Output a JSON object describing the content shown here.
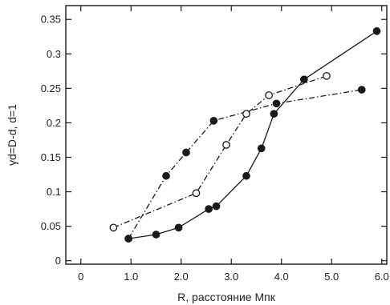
{
  "chart_data": {
    "type": "scatter",
    "title": "",
    "xlabel": "R, расстояние Мпк",
    "ylabel": "γd=D-d, d=1",
    "xlim": [
      -0.3,
      6.1
    ],
    "ylim": [
      -0.005,
      0.37
    ],
    "grid": false,
    "legend": "none",
    "x_ticks": [
      {
        "value": 0,
        "label": "0"
      },
      {
        "value": 1,
        "label": "1.0"
      },
      {
        "value": 2,
        "label": "2.0"
      },
      {
        "value": 3,
        "label": "3.0"
      },
      {
        "value": 4,
        "label": "4.0"
      },
      {
        "value": 5,
        "label": "5.0"
      },
      {
        "value": 6,
        "label": "6.0"
      }
    ],
    "y_ticks": [
      {
        "value": 0,
        "label": "0"
      },
      {
        "value": 0.05,
        "label": "0.05"
      },
      {
        "value": 0.1,
        "label": "0.1"
      },
      {
        "value": 0.15,
        "label": "0.15"
      },
      {
        "value": 0.2,
        "label": "0.2"
      },
      {
        "value": 0.25,
        "label": "0.25"
      },
      {
        "value": 0.3,
        "label": "0.3"
      },
      {
        "value": 0.35,
        "label": "0.35"
      }
    ],
    "series": [
      {
        "marker": "filled-circle",
        "line": "solid",
        "color": "#1a1a1a",
        "points": [
          {
            "x": 0.95,
            "y": 0.032
          },
          {
            "x": 1.5,
            "y": 0.038
          },
          {
            "x": 1.95,
            "y": 0.048
          },
          {
            "x": 2.55,
            "y": 0.075
          },
          {
            "x": 2.7,
            "y": 0.079
          },
          {
            "x": 3.3,
            "y": 0.123
          },
          {
            "x": 3.6,
            "y": 0.163
          },
          {
            "x": 3.85,
            "y": 0.213
          },
          {
            "x": 4.45,
            "y": 0.263
          },
          {
            "x": 5.9,
            "y": 0.333
          }
        ]
      },
      {
        "marker": "filled-circle",
        "line": "dash-dot",
        "color": "#1a1a1a",
        "points": [
          {
            "x": 0.95,
            "y": 0.032
          },
          {
            "x": 1.7,
            "y": 0.123
          },
          {
            "x": 2.1,
            "y": 0.157
          },
          {
            "x": 2.65,
            "y": 0.203
          },
          {
            "x": 3.9,
            "y": 0.228
          },
          {
            "x": 5.6,
            "y": 0.248
          }
        ]
      },
      {
        "marker": "open-circle",
        "line": "dash-dot",
        "color": "#1a1a1a",
        "points": [
          {
            "x": 0.65,
            "y": 0.048
          },
          {
            "x": 2.3,
            "y": 0.098
          },
          {
            "x": 2.9,
            "y": 0.168
          },
          {
            "x": 3.3,
            "y": 0.213
          },
          {
            "x": 3.75,
            "y": 0.24
          },
          {
            "x": 4.9,
            "y": 0.268
          }
        ]
      }
    ]
  }
}
